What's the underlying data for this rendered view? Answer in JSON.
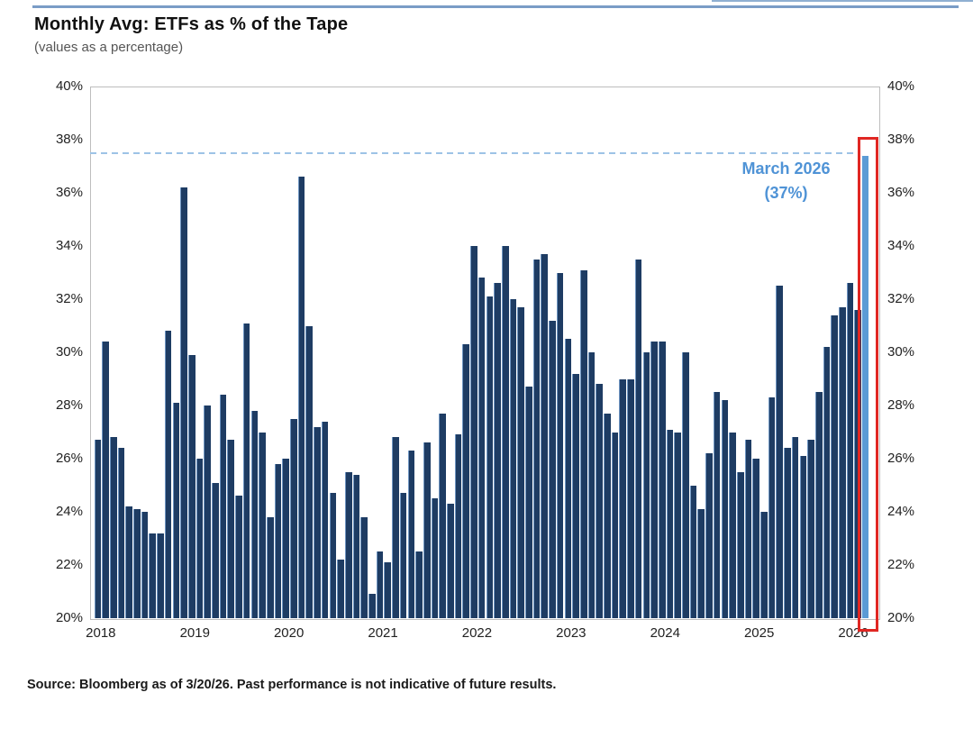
{
  "header": {
    "title": "Monthly Avg: ETFs as % of the Tape",
    "subtitle": "(values as a percentage)"
  },
  "annotation": {
    "line1": "March 2026",
    "line2": "(37%)"
  },
  "footer": {
    "source": "Source: Bloomberg as of 3/20/26. Past performance is not indicative of future results."
  },
  "colors": {
    "bar": "#1e3c63",
    "highlight_bar": "#5b9bd5",
    "dashed_line": "#9dc3e6",
    "red_box": "#e02723",
    "annotation_text": "#4f93d6",
    "top_rule": "#7a9cc6"
  },
  "chart_data": {
    "type": "bar",
    "title": "Monthly Avg: ETFs as % of the Tape",
    "subtitle": "(values as a percentage)",
    "ylim": [
      20,
      40
    ],
    "y_tick_step": 2,
    "y_ticks": [
      "40%",
      "38%",
      "36%",
      "34%",
      "32%",
      "30%",
      "28%",
      "26%",
      "24%",
      "22%",
      "20%"
    ],
    "x_year_labels": [
      "2018",
      "2019",
      "2020",
      "2021",
      "2022",
      "2023",
      "2024",
      "2025",
      "2026"
    ],
    "grid": false,
    "legend": "none",
    "dashed_line_value": 37.5,
    "highlight_index": 98,
    "highlight_label": "March 2026 (37%)",
    "categories": [
      "Jan 2018",
      "Feb 2018",
      "Mar 2018",
      "Apr 2018",
      "May 2018",
      "Jun 2018",
      "Jul 2018",
      "Aug 2018",
      "Sep 2018",
      "Oct 2018",
      "Nov 2018",
      "Dec 2018",
      "Jan 2019",
      "Feb 2019",
      "Mar 2019",
      "Apr 2019",
      "May 2019",
      "Jun 2019",
      "Jul 2019",
      "Aug 2019",
      "Sep 2019",
      "Oct 2019",
      "Nov 2019",
      "Dec 2019",
      "Jan 2020",
      "Feb 2020",
      "Mar 2020",
      "Apr 2020",
      "May 2020",
      "Jun 2020",
      "Jul 2020",
      "Aug 2020",
      "Sep 2020",
      "Oct 2020",
      "Nov 2020",
      "Dec 2020",
      "Jan 2021",
      "Feb 2021",
      "Mar 2021",
      "Apr 2021",
      "May 2021",
      "Jun 2021",
      "Jul 2021",
      "Aug 2021",
      "Sep 2021",
      "Oct 2021",
      "Nov 2021",
      "Dec 2021",
      "Jan 2022",
      "Feb 2022",
      "Mar 2022",
      "Apr 2022",
      "May 2022",
      "Jun 2022",
      "Jul 2022",
      "Aug 2022",
      "Sep 2022",
      "Oct 2022",
      "Nov 2022",
      "Dec 2022",
      "Jan 2023",
      "Feb 2023",
      "Mar 2023",
      "Apr 2023",
      "May 2023",
      "Jun 2023",
      "Jul 2023",
      "Aug 2023",
      "Sep 2023",
      "Oct 2023",
      "Nov 2023",
      "Dec 2023",
      "Jan 2024",
      "Feb 2024",
      "Mar 2024",
      "Apr 2024",
      "May 2024",
      "Jun 2024",
      "Jul 2024",
      "Aug 2024",
      "Sep 2024",
      "Oct 2024",
      "Nov 2024",
      "Dec 2024",
      "Jan 2025",
      "Feb 2025",
      "Mar 2025",
      "Apr 2025",
      "May 2025",
      "Jun 2025",
      "Jul 2025",
      "Aug 2025",
      "Sep 2025",
      "Oct 2025",
      "Nov 2025",
      "Dec 2025",
      "Jan 2026",
      "Feb 2026",
      "Mar 2026"
    ],
    "values": [
      26.7,
      30.4,
      26.8,
      26.4,
      24.2,
      24.1,
      24.0,
      23.2,
      23.2,
      30.8,
      28.1,
      36.2,
      29.9,
      26.0,
      28.0,
      25.1,
      28.4,
      26.7,
      24.6,
      31.1,
      27.8,
      27.0,
      23.8,
      25.8,
      26.0,
      27.5,
      36.6,
      31.0,
      27.2,
      27.4,
      24.7,
      22.2,
      25.5,
      25.4,
      23.8,
      20.9,
      22.5,
      22.1,
      26.8,
      24.7,
      26.3,
      22.5,
      26.6,
      24.5,
      27.7,
      24.3,
      26.9,
      30.3,
      34.0,
      32.8,
      32.1,
      32.6,
      34.0,
      32.0,
      31.7,
      28.7,
      33.5,
      33.7,
      31.2,
      33.0,
      30.5,
      29.2,
      33.1,
      30.0,
      28.8,
      27.7,
      27.0,
      29.0,
      29.0,
      33.5,
      30.0,
      30.4,
      30.4,
      27.1,
      27.0,
      30.0,
      25.0,
      24.1,
      26.2,
      28.5,
      28.2,
      27.0,
      25.5,
      26.7,
      26.0,
      24.0,
      28.3,
      32.5,
      26.4,
      26.8,
      26.1,
      26.7,
      28.5,
      30.2,
      31.4,
      31.7,
      32.6,
      31.6,
      37.4
    ]
  }
}
